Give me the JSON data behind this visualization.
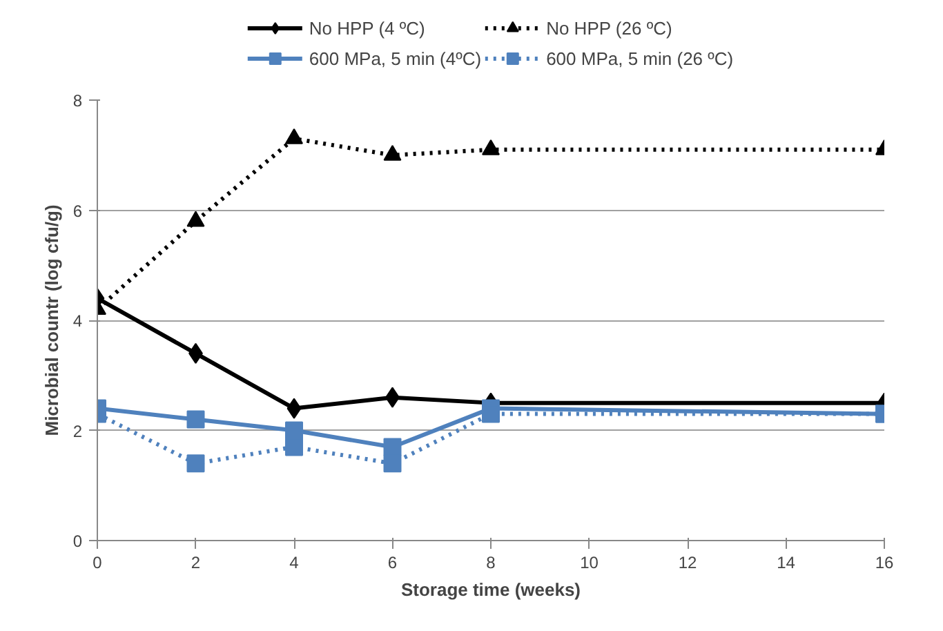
{
  "chart_data": {
    "type": "line",
    "xlabel": "Storage time (weeks)",
    "ylabel": "Microbial countr (log cfu/g)",
    "x": [
      0,
      2,
      4,
      6,
      8,
      16
    ],
    "xlim": [
      0,
      16
    ],
    "xticks": [
      0,
      2,
      4,
      6,
      8,
      10,
      12,
      14,
      16
    ],
    "ylim": [
      0,
      8
    ],
    "yticks": [
      0,
      2,
      4,
      6,
      8
    ],
    "grid": "y",
    "legend": "top",
    "series": [
      {
        "name": "No HPP (4 ºC)",
        "color": "#000000",
        "values": [
          4.4,
          3.4,
          2.4,
          2.6,
          2.5,
          2.5
        ],
        "marker": "diamond",
        "line_style": "solid"
      },
      {
        "name": "600 MPa, 5 min (4ºC)",
        "color": "#4f81bd",
        "values": [
          2.4,
          2.2,
          2.0,
          1.7,
          2.4,
          2.3
        ],
        "marker": "square",
        "line_style": "solid"
      },
      {
        "name": "No HPP (26 ºC)",
        "color": "#000000",
        "values": [
          4.2,
          5.8,
          7.3,
          7.0,
          7.1,
          7.1
        ],
        "marker": "triangle",
        "line_style": "dotted"
      },
      {
        "name": "600 MPa, 5 min (26 ºC)",
        "color": "#4f81bd",
        "values": [
          2.3,
          1.4,
          1.7,
          1.4,
          2.3,
          2.3
        ],
        "marker": "square",
        "line_style": "dotted"
      }
    ]
  }
}
